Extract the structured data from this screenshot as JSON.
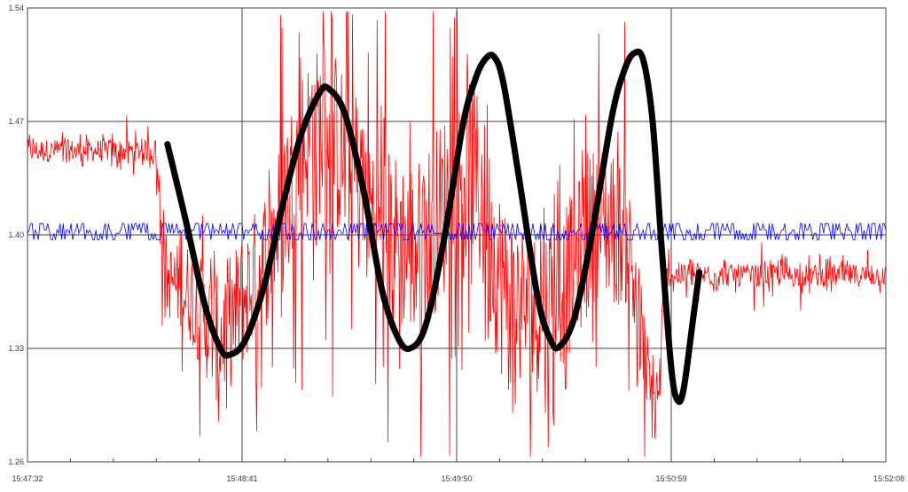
{
  "chart_data": {
    "type": "line",
    "title": "",
    "xlabel": "",
    "ylabel": "",
    "grid": true,
    "legend": "none",
    "x_ticks": [
      "15:47:32",
      "15:48:41",
      "15:49:50",
      "15:50:59",
      "15:52:08"
    ],
    "y_ticks": [
      "1.54",
      "1.47",
      "1.40",
      "1.33",
      "1.26"
    ],
    "xlim": [
      "15:47:32",
      "15:52:08"
    ],
    "ylim": [
      1.26,
      1.54
    ],
    "colors": {
      "measured": "#ff0000",
      "reference": "#0000ff",
      "fit": "#000000",
      "grid": "#404040",
      "minor_grid": "#c8c8c8"
    },
    "series": [
      {
        "key": "measured",
        "style": "noisy-red",
        "points": [
          [
            "15:47:32",
            1.452
          ],
          [
            "15:48:13",
            1.452
          ],
          [
            "15:48:17",
            1.372
          ],
          [
            "15:48:24",
            1.365
          ],
          [
            "15:48:27",
            1.355
          ],
          [
            "15:48:33",
            1.335
          ],
          [
            "15:48:40",
            1.355
          ],
          [
            "15:48:50",
            1.392
          ],
          [
            "15:49:00",
            1.455
          ],
          [
            "15:49:08",
            1.468
          ],
          [
            "15:49:18",
            1.432
          ],
          [
            "15:49:28",
            1.398
          ],
          [
            "15:49:38",
            1.392
          ],
          [
            "15:49:48",
            1.425
          ],
          [
            "15:49:55",
            1.445
          ],
          [
            "15:50:05",
            1.365
          ],
          [
            "15:50:15",
            1.352
          ],
          [
            "15:50:25",
            1.37
          ],
          [
            "15:50:35",
            1.41
          ],
          [
            "15:50:45",
            1.398
          ],
          [
            "15:50:52",
            1.3
          ],
          [
            "15:50:55",
            1.3
          ],
          [
            "15:50:57",
            1.375
          ],
          [
            "15:52:08",
            1.375
          ]
        ],
        "noise": [
          [
            "15:47:32",
            0.01
          ],
          [
            "15:48:14",
            0.01
          ],
          [
            "15:48:15",
            0.03
          ],
          [
            "15:48:25",
            0.045
          ],
          [
            "15:48:35",
            0.06
          ],
          [
            "15:48:45",
            0.06
          ],
          [
            "15:49:10",
            0.08
          ],
          [
            "15:49:35",
            0.08
          ],
          [
            "15:50:00",
            0.085
          ],
          [
            "15:50:20",
            0.07
          ],
          [
            "15:50:40",
            0.07
          ],
          [
            "15:50:50",
            0.05
          ],
          [
            "15:50:56",
            0.03
          ],
          [
            "15:50:57",
            0.01
          ],
          [
            "15:52:08",
            0.01
          ]
        ],
        "noise_floor": 1.263,
        "noise_ceiling": 1.538
      },
      {
        "key": "reference",
        "style": "noisy-blue",
        "points": [
          [
            "15:47:32",
            1.402
          ],
          [
            "15:52:08",
            1.402
          ]
        ],
        "noise": [
          [
            "15:47:32",
            0.005
          ],
          [
            "15:52:08",
            0.005
          ]
        ]
      },
      {
        "key": "fit",
        "style": "smooth-black",
        "points": [
          [
            "15:48:17",
            1.456
          ],
          [
            "15:48:23",
            1.408
          ],
          [
            "15:48:29",
            1.357
          ],
          [
            "15:48:34",
            1.33
          ],
          [
            "15:48:37",
            1.326
          ],
          [
            "15:48:42",
            1.335
          ],
          [
            "15:48:48",
            1.368
          ],
          [
            "15:48:54",
            1.418
          ],
          [
            "15:49:00",
            1.462
          ],
          [
            "15:49:06",
            1.488
          ],
          [
            "15:49:09",
            1.49
          ],
          [
            "15:49:14",
            1.475
          ],
          [
            "15:49:20",
            1.428
          ],
          [
            "15:49:26",
            1.366
          ],
          [
            "15:49:31",
            1.337
          ],
          [
            "15:49:35",
            1.33
          ],
          [
            "15:49:40",
            1.344
          ],
          [
            "15:49:46",
            1.398
          ],
          [
            "15:49:52",
            1.468
          ],
          [
            "15:49:56",
            1.496
          ],
          [
            "15:49:59",
            1.508
          ],
          [
            "15:50:02",
            1.51
          ],
          [
            "15:50:05",
            1.494
          ],
          [
            "15:50:10",
            1.436
          ],
          [
            "15:50:16",
            1.362
          ],
          [
            "15:50:20",
            1.336
          ],
          [
            "15:50:23",
            1.331
          ],
          [
            "15:50:28",
            1.35
          ],
          [
            "15:50:34",
            1.406
          ],
          [
            "15:50:40",
            1.474
          ],
          [
            "15:50:44",
            1.502
          ],
          [
            "15:50:47",
            1.512
          ],
          [
            "15:50:50",
            1.508
          ],
          [
            "15:50:53",
            1.47
          ],
          [
            "15:50:56",
            1.39
          ],
          [
            "15:50:59",
            1.318
          ],
          [
            "15:51:01",
            1.298
          ],
          [
            "15:51:03",
            1.305
          ],
          [
            "15:51:06",
            1.348
          ],
          [
            "15:51:08",
            1.377
          ]
        ]
      }
    ]
  }
}
